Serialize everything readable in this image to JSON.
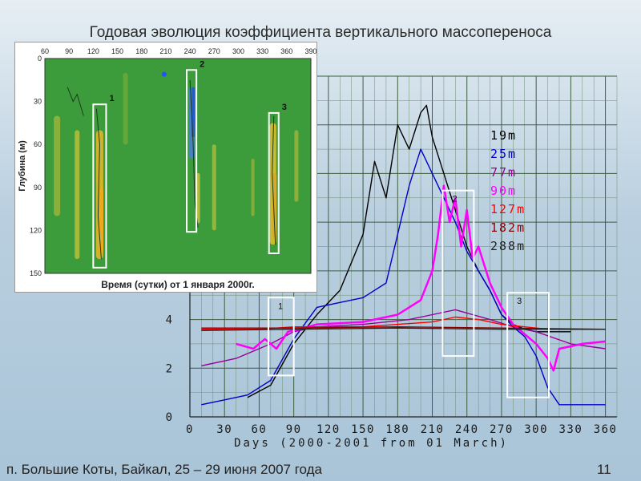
{
  "slide": {
    "title": "Годовая эволюция коэффициента вертикального массопереноса",
    "footer": "п. Большие Коты, Байкал,  25 – 29 июня 2007  года",
    "page_number": "11"
  },
  "chart_data": [
    {
      "id": "main",
      "type": "line",
      "xlabel": "Days (2000-2001 from 01 March)",
      "ylabel": "",
      "xlim": [
        0,
        370
      ],
      "ylim": [
        0,
        14
      ],
      "xticks": [
        0,
        30,
        60,
        90,
        120,
        150,
        180,
        210,
        240,
        270,
        300,
        330,
        360
      ],
      "yticks": [
        0,
        2,
        4
      ],
      "grid": true,
      "legend": [
        {
          "name": "19m",
          "color": "#000000"
        },
        {
          "name": "25m",
          "color": "#0000cc"
        },
        {
          "name": "77m",
          "color": "#990099"
        },
        {
          "name": "90m",
          "color": "#ff00ff"
        },
        {
          "name": "127m",
          "color": "#ff0000"
        },
        {
          "name": "182m",
          "color": "#8b0000"
        },
        {
          "name": "288m",
          "color": "#222222"
        }
      ],
      "series": [
        {
          "name": "19m",
          "color": "#000000",
          "x": [
            50,
            70,
            90,
            110,
            130,
            150,
            160,
            170,
            180,
            190,
            200,
            205,
            210,
            220,
            230,
            240,
            250,
            260,
            270,
            280,
            290,
            300,
            310,
            320,
            330
          ],
          "y": [
            0.8,
            1.3,
            3.0,
            4.2,
            5.2,
            7.5,
            10.5,
            9.0,
            12.0,
            11.0,
            12.5,
            12.8,
            11.5,
            10.0,
            8.5,
            7.0,
            6.0,
            5.2,
            4.2,
            3.8,
            3.6,
            3.5,
            3.5,
            3.5,
            3.5
          ]
        },
        {
          "name": "25m",
          "color": "#0000cc",
          "x": [
            10,
            30,
            50,
            70,
            90,
            110,
            130,
            150,
            170,
            180,
            190,
            200,
            210,
            220,
            230,
            240,
            250,
            260,
            270,
            280,
            290,
            300,
            310,
            320,
            340,
            360
          ],
          "y": [
            0.5,
            0.7,
            0.9,
            1.5,
            3.2,
            4.5,
            4.7,
            4.9,
            5.5,
            7.5,
            9.5,
            11.0,
            10.0,
            9.0,
            8.0,
            6.8,
            6.0,
            5.2,
            4.2,
            3.7,
            3.3,
            2.5,
            1.2,
            0.5,
            0.5,
            0.5
          ]
        },
        {
          "name": "77m",
          "color": "#990099",
          "x": [
            10,
            40,
            70,
            90,
            110,
            150,
            190,
            210,
            230,
            260,
            280,
            300,
            330,
            360
          ],
          "y": [
            2.1,
            2.4,
            3.0,
            3.5,
            3.7,
            3.8,
            4.0,
            4.2,
            4.4,
            4.0,
            3.7,
            3.5,
            3.0,
            2.8
          ]
        },
        {
          "name": "90m",
          "color": "#ff00ff",
          "x": [
            40,
            55,
            65,
            75,
            85,
            95,
            110,
            150,
            180,
            200,
            210,
            215,
            220,
            225,
            230,
            235,
            240,
            245,
            250,
            260,
            270,
            280,
            290,
            300,
            310,
            315,
            320,
            340,
            360
          ],
          "y": [
            3.0,
            2.8,
            3.2,
            2.8,
            3.5,
            3.6,
            3.8,
            3.9,
            4.2,
            4.8,
            6.0,
            7.5,
            9.5,
            8.0,
            9.0,
            7.0,
            8.5,
            6.5,
            7.0,
            5.5,
            4.5,
            3.8,
            3.4,
            3.0,
            2.4,
            1.9,
            2.8,
            3.0,
            3.1
          ]
        },
        {
          "name": "127m",
          "color": "#ff0000",
          "x": [
            10,
            60,
            90,
            120,
            150,
            180,
            210,
            230,
            250,
            270,
            290,
            310,
            330,
            360
          ],
          "y": [
            3.6,
            3.6,
            3.7,
            3.7,
            3.7,
            3.8,
            3.9,
            4.1,
            4.0,
            3.8,
            3.7,
            3.6,
            3.6,
            3.6
          ]
        },
        {
          "name": "182m",
          "color": "#8b0000",
          "x": [
            10,
            90,
            180,
            270,
            360
          ],
          "y": [
            3.65,
            3.65,
            3.7,
            3.65,
            3.6
          ]
        },
        {
          "name": "288m",
          "color": "#222222",
          "x": [
            10,
            90,
            180,
            270,
            360
          ],
          "y": [
            3.55,
            3.6,
            3.65,
            3.6,
            3.6
          ]
        }
      ],
      "annotations": [
        {
          "label": "1",
          "x0": 68,
          "x1": 90,
          "y0": 1.7,
          "y1": 4.9
        },
        {
          "label": "2",
          "x0": 219,
          "x1": 246,
          "y0": 2.5,
          "y1": 9.3
        },
        {
          "label": "3",
          "x0": 275,
          "x1": 311,
          "y0": 0.8,
          "y1": 5.1
        }
      ]
    },
    {
      "id": "inset",
      "type": "heatmap",
      "xlabel": "Время (сутки) от 1 января 2000г.",
      "ylabel": "Глубина (м)",
      "xlim": [
        60,
        390
      ],
      "ylim": [
        150,
        0
      ],
      "xticks": [
        60,
        90,
        120,
        150,
        180,
        210,
        240,
        270,
        300,
        330,
        360,
        390
      ],
      "yticks": [
        0,
        30,
        60,
        90,
        120,
        150
      ],
      "background": "#3c9c3c",
      "annotations": [
        {
          "label": "1",
          "x0": 120,
          "x1": 136,
          "y0": 32,
          "y1": 146
        },
        {
          "label": "2",
          "x0": 236,
          "x1": 248,
          "y0": 8,
          "y1": 121
        },
        {
          "label": "3",
          "x0": 338,
          "x1": 350,
          "y0": 38,
          "y1": 136
        }
      ]
    }
  ]
}
